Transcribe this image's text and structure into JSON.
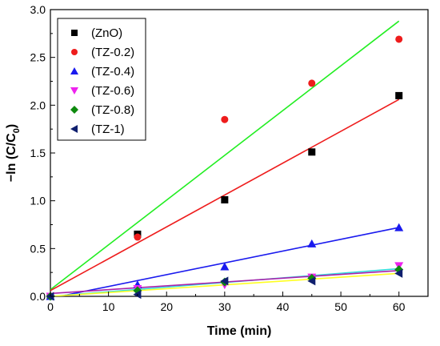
{
  "chart_data": {
    "type": "scatter",
    "xlabel": "Time (min)",
    "ylabel_main": "−ln (C/C",
    "ylabel_sub": "0",
    "ylabel_end": ")",
    "xlim": [
      0,
      65
    ],
    "ylim": [
      0,
      3.0
    ],
    "xticks": [
      "0",
      "10",
      "20",
      "30",
      "40",
      "50",
      "60"
    ],
    "yticks": [
      "0.0",
      "0.5",
      "1.0",
      "1.5",
      "2.0",
      "2.5",
      "3.0"
    ],
    "legend_position": "top-left",
    "x": [
      0,
      15,
      30,
      45,
      60
    ],
    "series": [
      {
        "name": "(ZnO)",
        "marker": "square",
        "color": "#000000",
        "values": [
          0,
          0.65,
          1.01,
          1.51,
          2.1
        ]
      },
      {
        "name": "(TZ-0.2)",
        "marker": "circle",
        "color": "#ee1c1c",
        "values": [
          0,
          0.62,
          1.85,
          2.23,
          2.69
        ]
      },
      {
        "name": "(TZ-0.4)",
        "marker": "triangle-up",
        "color": "#1a1aee",
        "values": [
          0,
          0.12,
          0.31,
          0.55,
          0.72
        ]
      },
      {
        "name": "(TZ-0.6)",
        "marker": "triangle-down",
        "color": "#ee22ee",
        "values": [
          0,
          0.08,
          0.12,
          0.2,
          0.32
        ]
      },
      {
        "name": "(TZ-0.8)",
        "marker": "diamond",
        "color": "#0e8a0e",
        "values": [
          0,
          0.06,
          0.15,
          0.19,
          0.28
        ]
      },
      {
        "name": "(TZ-1)",
        "marker": "triangle-left",
        "color": "#0f1f6e",
        "values": [
          0,
          0.02,
          0.16,
          0.16,
          0.24
        ]
      }
    ],
    "fit_lines": [
      {
        "color": "#22ee22",
        "x": [
          0,
          60
        ],
        "y": [
          0.07,
          2.88
        ]
      },
      {
        "color": "#ee1c1c",
        "x": [
          0,
          60
        ],
        "y": [
          0.06,
          2.06
        ]
      },
      {
        "color": "#1a1aee",
        "x": [
          0,
          60
        ],
        "y": [
          -0.02,
          0.72
        ]
      },
      {
        "color": "#33dddd",
        "x": [
          0,
          60
        ],
        "y": [
          0.0,
          0.29
        ]
      },
      {
        "color": "#aa22aa",
        "x": [
          0,
          60
        ],
        "y": [
          0.03,
          0.27
        ]
      },
      {
        "color": "#ffff22",
        "x": [
          0,
          60
        ],
        "y": [
          0.0,
          0.24
        ]
      }
    ]
  }
}
